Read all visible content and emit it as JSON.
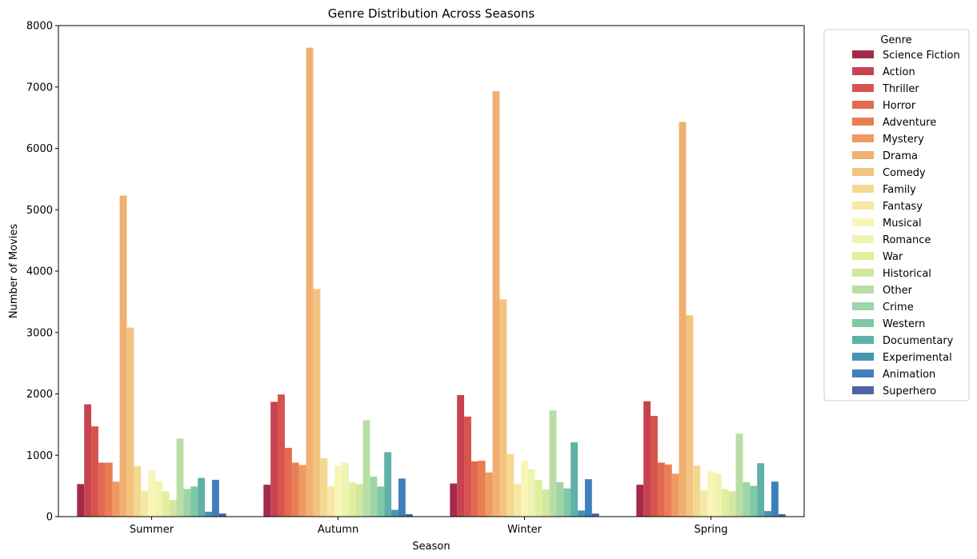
{
  "chart_data": {
    "type": "bar",
    "title": "Genre Distribution Across Seasons",
    "xlabel": "Season",
    "ylabel": "Number of Movies",
    "ylim": [
      0,
      8000
    ],
    "yticks": [
      0,
      1000,
      2000,
      3000,
      4000,
      5000,
      6000,
      7000,
      8000
    ],
    "categories": [
      "Summer",
      "Autumn",
      "Winter",
      "Spring"
    ],
    "legend_title": "Genre",
    "legend_position": "outside-top-right",
    "grid": false,
    "series": [
      {
        "name": "Science Fiction",
        "color": "#a52a4a",
        "values": [
          530,
          520,
          540,
          520
        ]
      },
      {
        "name": "Action",
        "color": "#c7434f",
        "values": [
          1830,
          1870,
          1980,
          1880
        ]
      },
      {
        "name": "Thriller",
        "color": "#d6534e",
        "values": [
          1470,
          1990,
          1630,
          1640
        ]
      },
      {
        "name": "Horror",
        "color": "#e26a4e",
        "values": [
          880,
          1120,
          900,
          880
        ]
      },
      {
        "name": "Adventure",
        "color": "#e97e52",
        "values": [
          880,
          880,
          910,
          850
        ]
      },
      {
        "name": "Mystery",
        "color": "#ee9a62",
        "values": [
          570,
          840,
          720,
          700
        ]
      },
      {
        "name": "Drama",
        "color": "#f0b072",
        "values": [
          5230,
          7640,
          6930,
          6430
        ]
      },
      {
        "name": "Comedy",
        "color": "#f3c47f",
        "values": [
          3080,
          3710,
          3540,
          3280
        ]
      },
      {
        "name": "Family",
        "color": "#f5d890",
        "values": [
          820,
          950,
          1020,
          830
        ]
      },
      {
        "name": "Fantasy",
        "color": "#f7e8a6",
        "values": [
          420,
          490,
          530,
          430
        ]
      },
      {
        "name": "Musical",
        "color": "#f9f5b6",
        "values": [
          750,
          830,
          910,
          740
        ]
      },
      {
        "name": "Romance",
        "color": "#eff4b2",
        "values": [
          580,
          880,
          770,
          700
        ]
      },
      {
        "name": "War",
        "color": "#e1ee9c",
        "values": [
          410,
          560,
          600,
          450
        ]
      },
      {
        "name": "Historical",
        "color": "#d2e7a0",
        "values": [
          270,
          530,
          440,
          410
        ]
      },
      {
        "name": "Other",
        "color": "#b8dea6",
        "values": [
          1270,
          1570,
          1730,
          1350
        ]
      },
      {
        "name": "Crime",
        "color": "#9fd4a9",
        "values": [
          450,
          650,
          560,
          560
        ]
      },
      {
        "name": "Western",
        "color": "#7fc8a6",
        "values": [
          490,
          490,
          460,
          500
        ]
      },
      {
        "name": "Documentary",
        "color": "#5fb0a8",
        "values": [
          630,
          1050,
          1210,
          870
        ]
      },
      {
        "name": "Experimental",
        "color": "#4496b3",
        "values": [
          80,
          110,
          100,
          90
        ]
      },
      {
        "name": "Animation",
        "color": "#3f80bb",
        "values": [
          600,
          620,
          610,
          570
        ]
      },
      {
        "name": "Superhero",
        "color": "#4e63a8",
        "values": [
          50,
          40,
          50,
          40
        ]
      }
    ]
  }
}
